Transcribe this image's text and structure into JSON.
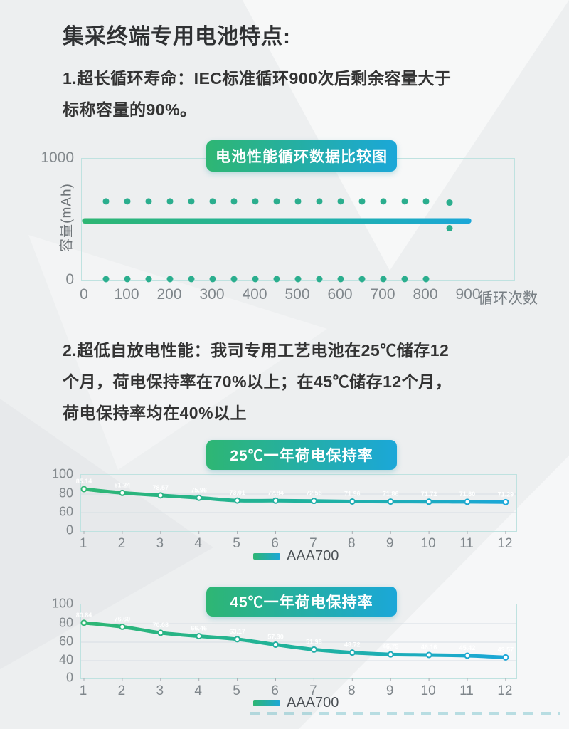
{
  "page": {
    "title": "集采终端专用电池特点:"
  },
  "sections": [
    {
      "id": "cycle-life",
      "lines": [
        "1.超长循环寿命：IEC标准循环900次后剩余容量大于",
        "标称容量的90%。"
      ]
    },
    {
      "id": "self-discharge",
      "lines": [
        "2.超低自放电性能：我司专用工艺电池在25℃储存12",
        "个月，荷电保持率在70%以上；在45℃储存12个月，",
        "荷电保持率均在40%以上"
      ]
    }
  ],
  "colors": {
    "accent_green": "#2eb673",
    "accent_blue": "#1ba7d8",
    "dot_teal": "#2bae8e",
    "stroke_top_blue": "#a3d7ec",
    "stroke_bottom_green": "#a8dfc6",
    "grid": "#d6dee3",
    "axis_text": "#82888c"
  },
  "chart_data": [
    {
      "type": "line",
      "subtype": "cycle-capacity-comparison",
      "title": "电池性能循环数据比较图",
      "ylabel": "容量(mAh)",
      "xlabel": "循环次数",
      "ylim": [
        0,
        1000
      ],
      "yticks": [
        1000,
        0
      ],
      "xticks": [
        0,
        100,
        200,
        300,
        400,
        500,
        600,
        700,
        800,
        900
      ],
      "grid": false,
      "capacity_line": {
        "value": 490,
        "from_cycle": 0,
        "to_cycle": 900
      },
      "cycle_strokes": {
        "cycles": [
          50,
          100,
          150,
          200,
          250,
          300,
          350,
          400,
          450,
          500,
          550,
          600,
          650,
          700,
          750,
          800
        ],
        "from_value": 0,
        "to_value": 650
      },
      "final_stroke": {
        "cycle": 855,
        "from_value": 430,
        "to_value": 640
      }
    },
    {
      "type": "line",
      "title": "25℃一年荷电保持率",
      "x": [
        1,
        2,
        3,
        4,
        5,
        6,
        7,
        8,
        9,
        10,
        11,
        12
      ],
      "yticks": [
        100,
        80,
        60,
        0
      ],
      "ylim": [
        0,
        100
      ],
      "grid": true,
      "legend_position": "bottom",
      "series": [
        {
          "name": "AAA700",
          "values": [
            85.14,
            81.24,
            78.57,
            75.96,
            73.01,
            72.84,
            72.56,
            71.96,
            71.86,
            71.72,
            71.6,
            71.29
          ],
          "point_labels": [
            "85.14",
            "81.24",
            "78.57",
            "75.96",
            "73.01",
            "72.84",
            "72.56",
            "71.96",
            "71.86",
            "71.72",
            "71.60",
            "71.29"
          ]
        }
      ]
    },
    {
      "type": "line",
      "title": "45℃一年荷电保持率",
      "x": [
        1,
        2,
        3,
        4,
        5,
        6,
        7,
        8,
        9,
        10,
        11,
        12
      ],
      "yticks": [
        100,
        80,
        60,
        40,
        0
      ],
      "ylim": [
        0,
        100
      ],
      "grid": true,
      "legend_position": "bottom",
      "series": [
        {
          "name": "AAA700",
          "values": [
            80.84,
            76.6,
            70.08,
            66.46,
            63.17,
            57.3,
            51.98,
            48.72,
            46.79,
            46.16,
            45.42,
            43.57
          ],
          "point_labels": [
            "80.84",
            "76.60",
            "70.08",
            "66.46",
            "63.17",
            "57.30",
            "51.98",
            "48.72",
            "46.79",
            "46.16",
            "45.42",
            "43.57"
          ]
        }
      ]
    }
  ]
}
